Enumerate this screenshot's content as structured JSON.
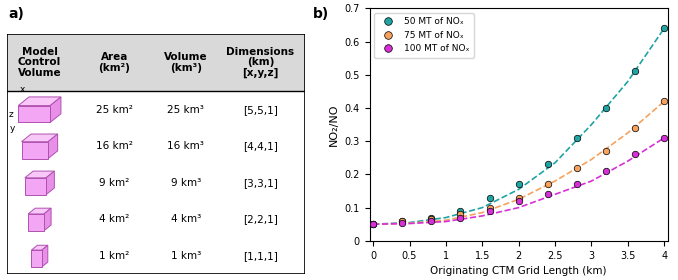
{
  "table_panel": {
    "panel_label": "a)",
    "header": [
      "Model\nControl\nVolume",
      "Area\n(km²)",
      "Volume\n(km³)",
      "Dimensions\n(km)\n[x,y,z]"
    ],
    "icon_axis_labels": [
      "x",
      "y",
      "z"
    ],
    "rows": [
      [
        "25 km²",
        "25 km³",
        "[5,5,1]"
      ],
      [
        "16 km²",
        "16 km³",
        "[4,4,1]"
      ],
      [
        "9 km²",
        "9 km³",
        "[3,3,1]"
      ],
      [
        "4 km²",
        "4 km³",
        "[2,2,1]"
      ],
      [
        "1 km²",
        "1 km³",
        "[1,1,1]"
      ]
    ]
  },
  "chart_data": {
    "type": "scatter",
    "panel_label": "b)",
    "x_label": "Originating CTM Grid Length (km)",
    "y_label": "NO₂/NO",
    "x": [
      0,
      0.4,
      0.8,
      1.2,
      1.6,
      2.0,
      2.4,
      2.8,
      3.2,
      3.6,
      4.0
    ],
    "fit_x": [
      0,
      0.5,
      1.0,
      1.5,
      2.0,
      2.5,
      3.0,
      3.5,
      4.0
    ],
    "series": [
      {
        "name": "50 MT of NOₓ",
        "color": "#1fa3a3",
        "marker": "o",
        "values": [
          0.05,
          0.06,
          0.07,
          0.09,
          0.13,
          0.17,
          0.23,
          0.31,
          0.4,
          0.51,
          0.64
        ],
        "fit": {
          "line_style": "dashed",
          "values": [
            0.05,
            0.055,
            0.07,
            0.1,
            0.155,
            0.235,
            0.35,
            0.48,
            0.64
          ]
        }
      },
      {
        "name": "75 MT of NOₓ",
        "color": "#f5a25e",
        "marker": "o",
        "values": [
          0.05,
          0.06,
          0.065,
          0.08,
          0.1,
          0.13,
          0.17,
          0.22,
          0.27,
          0.34,
          0.42
        ],
        "fit": {
          "line_style": "dashed",
          "values": [
            0.05,
            0.053,
            0.062,
            0.085,
            0.125,
            0.18,
            0.245,
            0.325,
            0.42
          ]
        }
      },
      {
        "name": "100 MT of NOₓ",
        "color": "#d62fd6",
        "marker": "o",
        "values": [
          0.05,
          0.055,
          0.06,
          0.07,
          0.09,
          0.12,
          0.14,
          0.17,
          0.21,
          0.26,
          0.31
        ],
        "fit": {
          "line_style": "dashed",
          "values": [
            0.05,
            0.052,
            0.058,
            0.075,
            0.1,
            0.14,
            0.18,
            0.24,
            0.31
          ]
        }
      }
    ],
    "xlim": [
      -0.05,
      4.05
    ],
    "ylim": [
      0,
      0.7
    ],
    "xticks": [
      0,
      0.5,
      1,
      1.5,
      2,
      2.5,
      3,
      3.5,
      4
    ],
    "yticks": [
      0,
      0.1,
      0.2,
      0.3,
      0.4,
      0.5,
      0.6,
      0.7
    ],
    "legend": "upper left",
    "grid": false
  }
}
